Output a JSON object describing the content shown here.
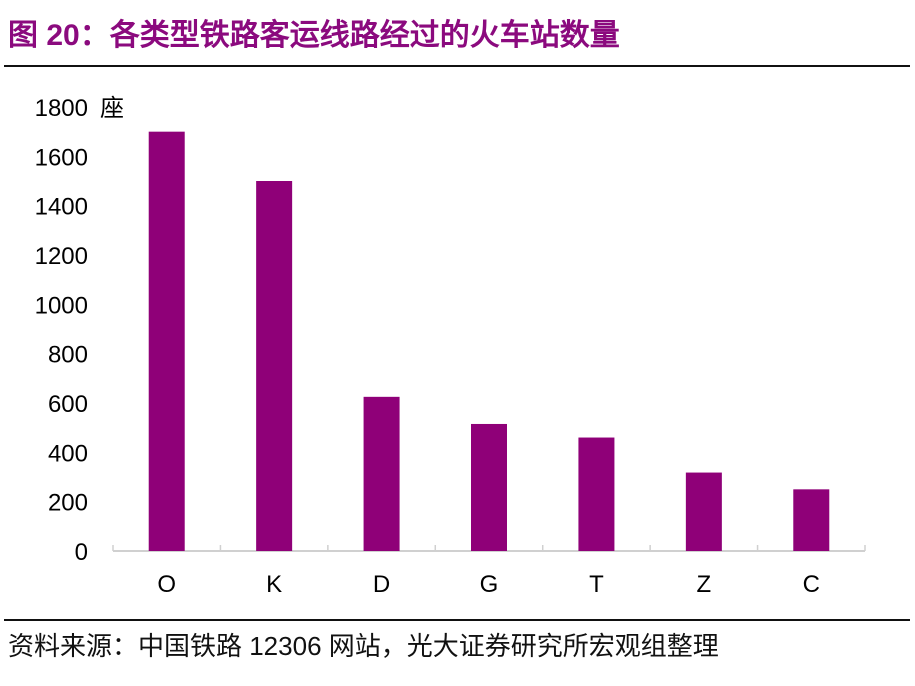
{
  "title": "图 20：各类型铁路客运线路经过的火车站数量",
  "source": "资料来源：中国铁路 12306 网站，光大证券研究所宏观组整理",
  "colors": {
    "bar": "#8F0078",
    "title": "#8B0A7E",
    "axis": "#d0d0d0"
  },
  "chart_data": {
    "type": "bar",
    "title": "",
    "unit": "座",
    "categories": [
      "O",
      "K",
      "D",
      "G",
      "T",
      "Z",
      "C"
    ],
    "values": [
      1700,
      1500,
      625,
      515,
      460,
      318,
      250
    ],
    "ylim": [
      0,
      1800
    ],
    "yticks": [
      0,
      200,
      400,
      600,
      800,
      1000,
      1200,
      1400,
      1600,
      1800
    ],
    "grid": false,
    "legend": "none"
  }
}
